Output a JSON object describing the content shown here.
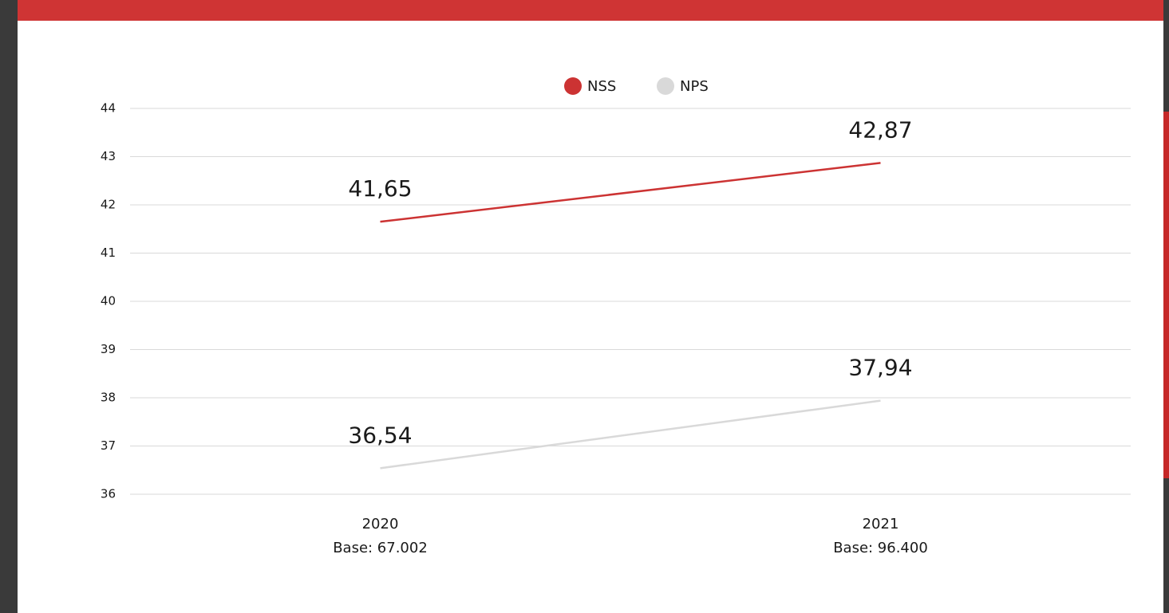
{
  "chart_data": {
    "type": "line",
    "categories": [
      "2020",
      "2021"
    ],
    "category_notes": [
      "Base: 67.002",
      "Base: 96.400"
    ],
    "series": [
      {
        "name": "NSS",
        "color": "#cc3333",
        "values": [
          41.65,
          42.87
        ],
        "value_labels": [
          "41,65",
          "42,87"
        ]
      },
      {
        "name": "NPS",
        "color": "#d9d9d9",
        "values": [
          36.54,
          37.94
        ],
        "value_labels": [
          "36,54",
          "37,94"
        ]
      }
    ],
    "ylim": [
      36,
      44
    ],
    "yticks": [
      36,
      37,
      38,
      39,
      40,
      41,
      42,
      43,
      44
    ],
    "grid": true
  }
}
